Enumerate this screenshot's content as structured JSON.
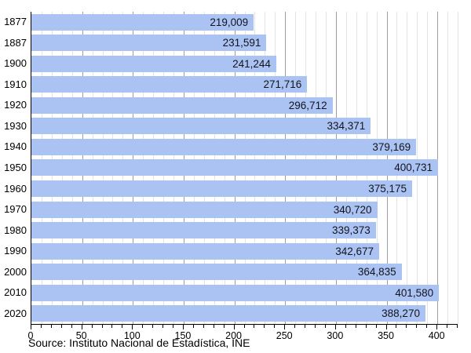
{
  "chart_data": {
    "type": "bar",
    "orientation": "horizontal",
    "title": "",
    "xlabel": "",
    "ylabel": "",
    "categories": [
      "1877",
      "1887",
      "1900",
      "1910",
      "1920",
      "1930",
      "1940",
      "1950",
      "1960",
      "1970",
      "1980",
      "1990",
      "2000",
      "2010",
      "2020"
    ],
    "values": [
      219009,
      231591,
      241244,
      271716,
      296712,
      334371,
      379169,
      400731,
      375175,
      340720,
      339373,
      342677,
      364835,
      401580,
      388270
    ],
    "value_labels": [
      "219,009",
      "231,591",
      "241,244",
      "271,716",
      "296,712",
      "334,371",
      "379,169",
      "400,731",
      "375,175",
      "340,720",
      "339,373",
      "342,677",
      "364,835",
      "401,580",
      "388,270"
    ],
    "axis_scale_thousands": true,
    "xlim": [
      0,
      420
    ],
    "x_major_ticks": [
      0,
      50,
      100,
      150,
      200,
      250,
      300,
      350,
      400
    ],
    "x_major_tick_labels": [
      "0",
      "50",
      "100",
      "150",
      "200",
      "250",
      "300",
      "350",
      "400"
    ],
    "x_minor_tick_step": 10,
    "grid": "vertical; minor every 10 (light gray), major every 50 (dark gray)",
    "legend": "none"
  },
  "footer": {
    "source_text": "Source: Instituto Nacional de Estadística, INE"
  },
  "colors": {
    "background": "#ffffff",
    "bar_fill": "#abc3f3",
    "bar_value_text": "#14141e",
    "axis_line": "#000000",
    "grid_minor": "#e4e4e4",
    "grid_major": "#9e9e9e",
    "label_text": "#000000"
  }
}
